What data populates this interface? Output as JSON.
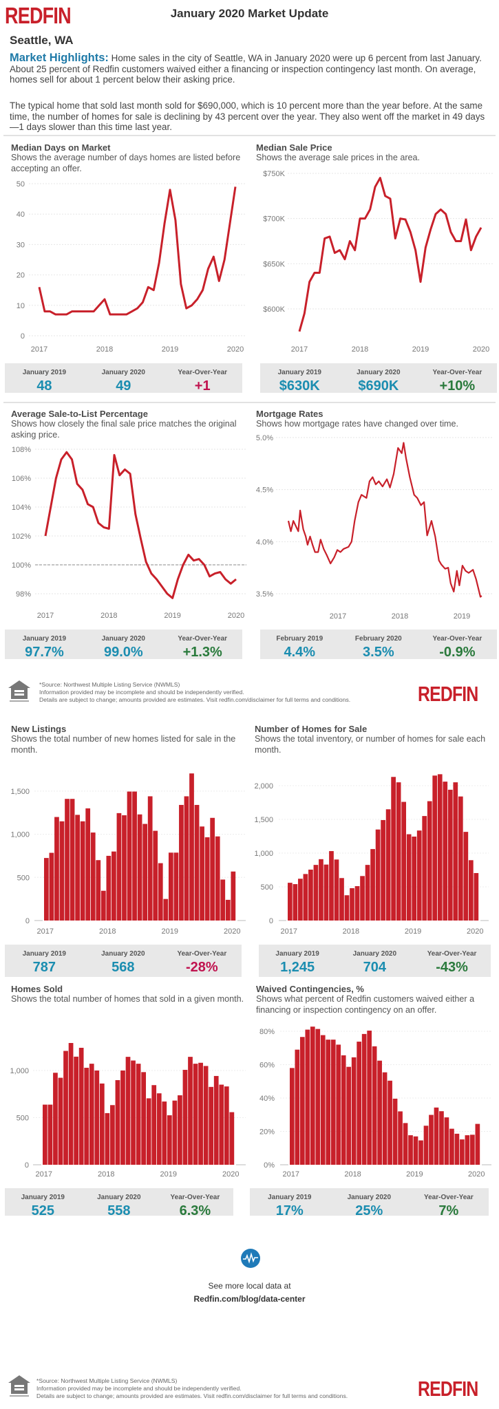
{
  "header": {
    "logo": "REDFIN",
    "title": "January 2020 Market Update",
    "city": "Seattle, WA"
  },
  "highlights": {
    "label": "Market Highlights:",
    "text1": "Home sales in the city of Seattle, WA in January 2020 were up 6 percent from last January. About 25 percent of Redfin customers waived either a financing or inspection contingency last month. On average, homes sell for about 1 percent below their asking price.",
    "text2": "The typical home that sold last month sold for $690,000, which is 10 percent more than the year before. At the same time, the number of homes for sale is declining by 43 percent over the year. They also went off the market in 49 days—1 days slower than this time last year."
  },
  "colors": {
    "brand_red": "#c8202a",
    "line": "#c8202a",
    "bar": "#c8202a",
    "value_blue": "#1b8db0",
    "negative_red": "#c0134f",
    "positive_green": "#2a7a3c",
    "highlight_blue": "#1f7aa8",
    "stat_bg": "#e8e8e8"
  },
  "chart_data": [
    {
      "type": "line",
      "title": "Median Days on Market",
      "subtitle": "Shows the average number of days homes are listed before accepting an offer.",
      "x_ticks": [
        "2017",
        "2018",
        "2019",
        "2020"
      ],
      "y_ticks": [
        "0",
        "10",
        "20",
        "30",
        "40",
        "50"
      ],
      "ylim": [
        0,
        50
      ],
      "categories": [
        "2017-01",
        "2017-02",
        "2017-03",
        "2017-04",
        "2017-05",
        "2017-06",
        "2017-07",
        "2017-08",
        "2017-09",
        "2017-10",
        "2017-11",
        "2017-12",
        "2018-01",
        "2018-02",
        "2018-03",
        "2018-04",
        "2018-05",
        "2018-06",
        "2018-07",
        "2018-08",
        "2018-09",
        "2018-10",
        "2018-11",
        "2018-12",
        "2019-01",
        "2019-02",
        "2019-03",
        "2019-04",
        "2019-05",
        "2019-06",
        "2019-07",
        "2019-08",
        "2019-09",
        "2019-10",
        "2019-11",
        "2019-12",
        "2020-01"
      ],
      "values": [
        16,
        8,
        8,
        7,
        7,
        7,
        8,
        8,
        8,
        8,
        8,
        10,
        12,
        7,
        7,
        7,
        7,
        8,
        9,
        11,
        16,
        15,
        24,
        37,
        48,
        38,
        17,
        9,
        10,
        12,
        15,
        22,
        26,
        18,
        25,
        37,
        49
      ]
    },
    {
      "type": "line",
      "title": "Median Sale Price",
      "subtitle": "Shows the average sale prices in the area.",
      "x_ticks": [
        "2017",
        "2018",
        "2019",
        "2020"
      ],
      "y_ticks": [
        "$600K",
        "$650K",
        "$700K",
        "$750K"
      ],
      "y_tick_values": [
        600,
        650,
        700,
        750
      ],
      "ylim": [
        575,
        750
      ],
      "unit": "$K",
      "categories": [
        "2017-01",
        "2017-02",
        "2017-03",
        "2017-04",
        "2017-05",
        "2017-06",
        "2017-07",
        "2017-08",
        "2017-09",
        "2017-10",
        "2017-11",
        "2017-12",
        "2018-01",
        "2018-02",
        "2018-03",
        "2018-04",
        "2018-05",
        "2018-06",
        "2018-07",
        "2018-08",
        "2018-09",
        "2018-10",
        "2018-11",
        "2018-12",
        "2019-01",
        "2019-02",
        "2019-03",
        "2019-04",
        "2019-05",
        "2019-06",
        "2019-07",
        "2019-08",
        "2019-09",
        "2019-10",
        "2019-11",
        "2019-12",
        "2020-01"
      ],
      "values": [
        575,
        595,
        630,
        640,
        640,
        678,
        680,
        662,
        665,
        655,
        675,
        665,
        700,
        700,
        710,
        735,
        745,
        725,
        722,
        678,
        700,
        699,
        685,
        665,
        630,
        668,
        688,
        705,
        710,
        705,
        685,
        675,
        675,
        699,
        665,
        680,
        690
      ]
    },
    {
      "type": "line",
      "title": "Average Sale-to-List Percentage",
      "subtitle": "Shows how closely the final sale price matches the original asking price.",
      "x_ticks": [
        "2017",
        "2018",
        "2019",
        "2020"
      ],
      "y_ticks": [
        "98%",
        "100%",
        "102%",
        "104%",
        "106%",
        "108%"
      ],
      "y_tick_values": [
        98,
        100,
        102,
        104,
        106,
        108
      ],
      "ylim": [
        98,
        108
      ],
      "reference_line": 100,
      "categories": [
        "2017-01",
        "2017-02",
        "2017-03",
        "2017-04",
        "2017-05",
        "2017-06",
        "2017-07",
        "2017-08",
        "2017-09",
        "2017-10",
        "2017-11",
        "2017-12",
        "2018-01",
        "2018-02",
        "2018-03",
        "2018-04",
        "2018-05",
        "2018-06",
        "2018-07",
        "2018-08",
        "2018-09",
        "2018-10",
        "2018-11",
        "2018-12",
        "2019-01",
        "2019-02",
        "2019-03",
        "2019-04",
        "2019-05",
        "2019-06",
        "2019-07",
        "2019-08",
        "2019-09",
        "2019-10",
        "2019-11",
        "2019-12",
        "2020-01"
      ],
      "values": [
        102.0,
        104.0,
        106.0,
        107.3,
        107.8,
        107.3,
        105.6,
        105.2,
        104.2,
        104.0,
        102.9,
        102.6,
        102.5,
        107.6,
        106.2,
        106.6,
        106.3,
        103.5,
        101.8,
        100.2,
        99.4,
        99.0,
        98.5,
        98.0,
        97.7,
        99.0,
        100.0,
        100.7,
        100.3,
        100.4,
        100.0,
        99.2,
        99.4,
        99.5,
        99.0,
        98.7,
        99.0
      ]
    },
    {
      "type": "line",
      "title": "Mortgage Rates",
      "subtitle": "Shows how mortgage rates have changed over time.",
      "x_ticks": [
        "2017",
        "2018",
        "2019"
      ],
      "y_ticks": [
        "3.5%",
        "4.0%",
        "4.5%",
        "5.0%"
      ],
      "y_tick_values": [
        3.5,
        4.0,
        4.5,
        5.0
      ],
      "ylim": [
        3.5,
        5.0
      ],
      "points": [
        [
          2016.2,
          4.2
        ],
        [
          2016.24,
          4.1
        ],
        [
          2016.28,
          4.2
        ],
        [
          2016.32,
          4.15
        ],
        [
          2016.36,
          4.1
        ],
        [
          2016.39,
          4.3
        ],
        [
          2016.44,
          4.12
        ],
        [
          2016.48,
          4.05
        ],
        [
          2016.51,
          3.97
        ],
        [
          2016.55,
          4.05
        ],
        [
          2016.59,
          3.97
        ],
        [
          2016.63,
          3.9
        ],
        [
          2016.68,
          3.9
        ],
        [
          2016.72,
          4.02
        ],
        [
          2016.77,
          3.93
        ],
        [
          2016.82,
          3.87
        ],
        [
          2016.88,
          3.79
        ],
        [
          2016.94,
          3.85
        ],
        [
          2016.99,
          3.92
        ],
        [
          2017.04,
          3.9
        ],
        [
          2017.09,
          3.93
        ],
        [
          2017.17,
          3.95
        ],
        [
          2017.22,
          4.0
        ],
        [
          2017.27,
          4.2
        ],
        [
          2017.33,
          4.38
        ],
        [
          2017.38,
          4.45
        ],
        [
          2017.46,
          4.42
        ],
        [
          2017.51,
          4.58
        ],
        [
          2017.56,
          4.62
        ],
        [
          2017.61,
          4.55
        ],
        [
          2017.66,
          4.58
        ],
        [
          2017.72,
          4.53
        ],
        [
          2017.79,
          4.6
        ],
        [
          2017.84,
          4.52
        ],
        [
          2017.9,
          4.65
        ],
        [
          2017.97,
          4.9
        ],
        [
          2018.03,
          4.85
        ],
        [
          2018.06,
          4.95
        ],
        [
          2018.1,
          4.8
        ],
        [
          2018.16,
          4.62
        ],
        [
          2018.23,
          4.45
        ],
        [
          2018.28,
          4.42
        ],
        [
          2018.34,
          4.35
        ],
        [
          2018.39,
          4.38
        ],
        [
          2018.44,
          4.06
        ],
        [
          2018.51,
          4.2
        ],
        [
          2018.57,
          4.05
        ],
        [
          2018.63,
          3.82
        ],
        [
          2018.67,
          3.78
        ],
        [
          2018.73,
          3.74
        ],
        [
          2018.78,
          3.75
        ],
        [
          2018.82,
          3.6
        ],
        [
          2018.87,
          3.52
        ],
        [
          2018.92,
          3.72
        ],
        [
          2018.96,
          3.58
        ],
        [
          2019.01,
          3.77
        ],
        [
          2019.06,
          3.72
        ],
        [
          2019.11,
          3.7
        ],
        [
          2019.18,
          3.73
        ],
        [
          2019.23,
          3.64
        ],
        [
          2019.3,
          3.47
        ],
        [
          2019.32,
          3.48
        ]
      ]
    },
    {
      "type": "bar",
      "title": "New Listings",
      "subtitle": "Shows the total number of new homes listed for sale in the month.",
      "x_ticks": [
        "2017",
        "2018",
        "2019",
        "2020"
      ],
      "y_ticks": [
        "0",
        "500",
        "1,000",
        "1,500"
      ],
      "y_tick_values": [
        0,
        500,
        1000,
        1500
      ],
      "ylim": [
        0,
        1700
      ],
      "categories": [
        "2017-01",
        "2017-02",
        "2017-03",
        "2017-04",
        "2017-05",
        "2017-06",
        "2017-07",
        "2017-08",
        "2017-09",
        "2017-10",
        "2017-11",
        "2017-12",
        "2018-01",
        "2018-02",
        "2018-03",
        "2018-04",
        "2018-05",
        "2018-06",
        "2018-07",
        "2018-08",
        "2018-09",
        "2018-10",
        "2018-11",
        "2018-12",
        "2019-01",
        "2019-02",
        "2019-03",
        "2019-04",
        "2019-05",
        "2019-06",
        "2019-07",
        "2019-08",
        "2019-09",
        "2019-10",
        "2019-11",
        "2019-12",
        "2020-01"
      ],
      "values": [
        725,
        785,
        1200,
        1150,
        1410,
        1410,
        1225,
        1150,
        1300,
        1020,
        700,
        345,
        750,
        800,
        1245,
        1220,
        1495,
        1495,
        1230,
        1120,
        1440,
        1040,
        665,
        250,
        787,
        787,
        1340,
        1440,
        1705,
        1340,
        1090,
        965,
        1190,
        975,
        475,
        240,
        568
      ]
    },
    {
      "type": "bar",
      "title": "Number of Homes for Sale",
      "subtitle": "Shows the total inventory, or number of homes for sale each month.",
      "x_ticks": [
        "2017",
        "2018",
        "2019",
        "2020"
      ],
      "y_ticks": [
        "0",
        "500",
        "1,000",
        "1,500",
        "2,000"
      ],
      "y_tick_values": [
        0,
        500,
        1000,
        1500,
        2000
      ],
      "ylim": [
        0,
        2170
      ],
      "categories": [
        "2017-01",
        "2017-02",
        "2017-03",
        "2017-04",
        "2017-05",
        "2017-06",
        "2017-07",
        "2017-08",
        "2017-09",
        "2017-10",
        "2017-11",
        "2017-12",
        "2018-01",
        "2018-02",
        "2018-03",
        "2018-04",
        "2018-05",
        "2018-06",
        "2018-07",
        "2018-08",
        "2018-09",
        "2018-10",
        "2018-11",
        "2018-12",
        "2019-01",
        "2019-02",
        "2019-03",
        "2019-04",
        "2019-05",
        "2019-06",
        "2019-07",
        "2019-08",
        "2019-09",
        "2019-10",
        "2019-11",
        "2019-12",
        "2020-01"
      ],
      "values": [
        560,
        540,
        620,
        690,
        755,
        825,
        910,
        830,
        1030,
        905,
        630,
        375,
        480,
        510,
        660,
        825,
        1060,
        1350,
        1490,
        1650,
        2130,
        2050,
        1760,
        1280,
        1245,
        1335,
        1550,
        1770,
        2150,
        2170,
        2060,
        1940,
        2050,
        1840,
        1315,
        895,
        704
      ]
    },
    {
      "type": "bar",
      "title": "Homes Sold",
      "subtitle": "Shows the total number of homes that sold in a given month.",
      "x_ticks": [
        "2017",
        "2018",
        "2019",
        "2020"
      ],
      "y_ticks": [
        "0",
        "500",
        "1,000"
      ],
      "y_tick_values": [
        0,
        500,
        1000
      ],
      "ylim": [
        0,
        1300
      ],
      "categories": [
        "2017-01",
        "2017-02",
        "2017-03",
        "2017-04",
        "2017-05",
        "2017-06",
        "2017-07",
        "2017-08",
        "2017-09",
        "2017-10",
        "2017-11",
        "2017-12",
        "2018-01",
        "2018-02",
        "2018-03",
        "2018-04",
        "2018-05",
        "2018-06",
        "2018-07",
        "2018-08",
        "2018-09",
        "2018-10",
        "2018-11",
        "2018-12",
        "2019-01",
        "2019-02",
        "2019-03",
        "2019-04",
        "2019-05",
        "2019-06",
        "2019-07",
        "2019-08",
        "2019-09",
        "2019-10",
        "2019-11",
        "2019-12",
        "2020-01"
      ],
      "values": [
        638,
        638,
        976,
        923,
        1208,
        1292,
        1147,
        1241,
        1029,
        1072,
        1000,
        862,
        548,
        633,
        898,
        1000,
        1145,
        1106,
        1072,
        983,
        705,
        845,
        758,
        671,
        525,
        681,
        737,
        1007,
        1145,
        1072,
        1082,
        1048,
        826,
        942,
        850,
        831,
        558
      ]
    },
    {
      "type": "bar",
      "title": "Waived Contingencies, %",
      "subtitle": "Shows what percent of Redfin customers waived either a financing or inspection contingency on an offer.",
      "x_ticks": [
        "2017",
        "2018",
        "2019",
        "2020"
      ],
      "y_ticks": [
        "0%",
        "20%",
        "40%",
        "60%",
        "80%"
      ],
      "y_tick_values": [
        0,
        20,
        40,
        60,
        80
      ],
      "ylim": [
        0,
        83
      ],
      "categories": [
        "2017-01",
        "2017-02",
        "2017-03",
        "2017-04",
        "2017-05",
        "2017-06",
        "2017-07",
        "2017-08",
        "2017-09",
        "2017-10",
        "2017-11",
        "2017-12",
        "2018-01",
        "2018-02",
        "2018-03",
        "2018-04",
        "2018-05",
        "2018-06",
        "2018-07",
        "2018-08",
        "2018-09",
        "2018-10",
        "2018-11",
        "2018-12",
        "2019-01",
        "2019-02",
        "2019-03",
        "2019-04",
        "2019-05",
        "2019-06",
        "2019-07",
        "2019-08",
        "2019-09",
        "2019-10",
        "2019-11",
        "2019-12",
        "2020-01"
      ],
      "values": [
        58,
        69,
        76.6,
        81,
        82.8,
        81.4,
        77.7,
        75,
        75,
        72,
        65.6,
        58.7,
        64.4,
        73.8,
        78.4,
        80.4,
        71,
        62.4,
        55.4,
        50.4,
        39.6,
        32,
        25,
        17.7,
        17,
        14.6,
        23.4,
        29.9,
        34.3,
        32.1,
        28.4,
        21.6,
        18.6,
        15.2,
        17.7,
        18,
        24.5
      ]
    }
  ],
  "stats": [
    {
      "labels": [
        "January 2019",
        "January 2020",
        "Year-Over-Year"
      ],
      "values": [
        "48",
        "49",
        "+1"
      ],
      "yoy_tone": "negative"
    },
    {
      "labels": [
        "January 2019",
        "January 2020",
        "Year-Over-Year"
      ],
      "values": [
        "$630K",
        "$690K",
        "+10%"
      ],
      "yoy_tone": "positive"
    },
    {
      "labels": [
        "January 2019",
        "January 2020",
        "Year-Over-Year"
      ],
      "values": [
        "97.7%",
        "99.0%",
        "+1.3%"
      ],
      "yoy_tone": "positive"
    },
    {
      "labels": [
        "February 2019",
        "February 2020",
        "Year-Over-Year"
      ],
      "values": [
        "4.4%",
        "3.5%",
        "-0.9%"
      ],
      "yoy_tone": "positive"
    },
    {
      "labels": [
        "January 2019",
        "January 2020",
        "Year-Over-Year"
      ],
      "values": [
        "787",
        "568",
        "-28%"
      ],
      "yoy_tone": "negative"
    },
    {
      "labels": [
        "January 2019",
        "January 2020",
        "Year-Over-Year"
      ],
      "values": [
        "1,245",
        "704",
        "-43%"
      ],
      "yoy_tone": "positive"
    },
    {
      "labels": [
        "January 2019",
        "January 2020",
        "Year-Over-Year"
      ],
      "values": [
        "525",
        "558",
        "6.3%"
      ],
      "yoy_tone": "positive"
    },
    {
      "labels": [
        "January 2019",
        "January 2020",
        "Year-Over-Year"
      ],
      "values": [
        "17%",
        "25%",
        "7%"
      ],
      "yoy_tone": "positive"
    }
  ],
  "footer": {
    "line1": "*Source: Northwest Multiple Listing Service (NWMLS)",
    "line2": "Information provided may be incomplete and should be independently verified.",
    "line3": "Details are subject to change; amounts provided are estimates. Visit redfin.com/disclaimer for full terms and conditions.",
    "equal_housing_icon": "equal-housing-opportunity-icon",
    "logo": "REDFIN"
  },
  "cta": {
    "icon": "data-center-pulse-icon",
    "line1": "See more local data at",
    "link": "Redfin.com/blog/data-center"
  }
}
